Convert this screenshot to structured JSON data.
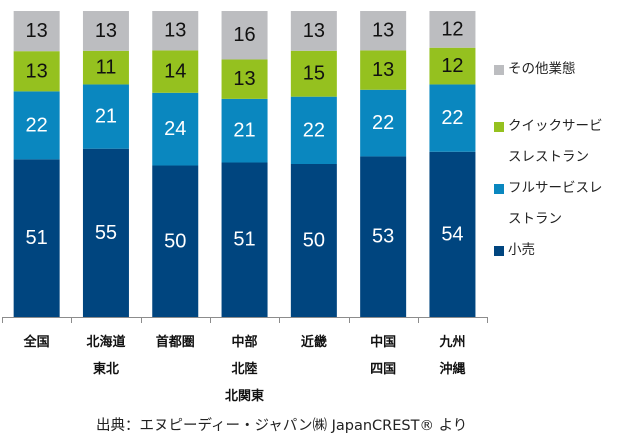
{
  "chart_data": {
    "type": "bar",
    "stacked": true,
    "orientation": "vertical",
    "categories": [
      [
        "全国"
      ],
      [
        "北海道",
        "東北"
      ],
      [
        "首都圏"
      ],
      [
        "中部",
        "北陸",
        "北関東"
      ],
      [
        "近畿"
      ],
      [
        "中国",
        "四国"
      ],
      [
        "九州",
        "沖縄"
      ]
    ],
    "series": [
      {
        "name": "小売",
        "color": "#00457F",
        "label_color": "#ffffff",
        "values": [
          51,
          55,
          50,
          51,
          50,
          53,
          54
        ]
      },
      {
        "name": "フルサービスレストラン",
        "color": "#0A87BF",
        "label_color": "#ffffff",
        "values": [
          22,
          21,
          24,
          21,
          22,
          22,
          22
        ]
      },
      {
        "name": "クイックサービスレストラン",
        "color": "#95C11F",
        "label_color": "#111111",
        "values": [
          13,
          11,
          14,
          13,
          15,
          13,
          12
        ]
      },
      {
        "name": "その他業態",
        "color": "#BCBDC0",
        "label_color": "#111111",
        "values": [
          13,
          13,
          13,
          16,
          13,
          13,
          12
        ]
      }
    ],
    "ylim": [
      0,
      100
    ],
    "grid": false,
    "legend_position": "right",
    "title": "",
    "xlabel": "",
    "ylabel": ""
  },
  "legend": [
    {
      "lines": [
        "その他業態"
      ],
      "color": "#BCBDC0"
    },
    {
      "lines": [
        "クイックサービ",
        "スレストラン"
      ],
      "color": "#95C11F"
    },
    {
      "lines": [
        "フルサービスレ",
        "ストラン"
      ],
      "color": "#0A87BF"
    },
    {
      "lines": [
        "小売"
      ],
      "color": "#00457F"
    }
  ],
  "source": "出典：エヌピーディー・ジャパン㈱ JapanCREST® より"
}
